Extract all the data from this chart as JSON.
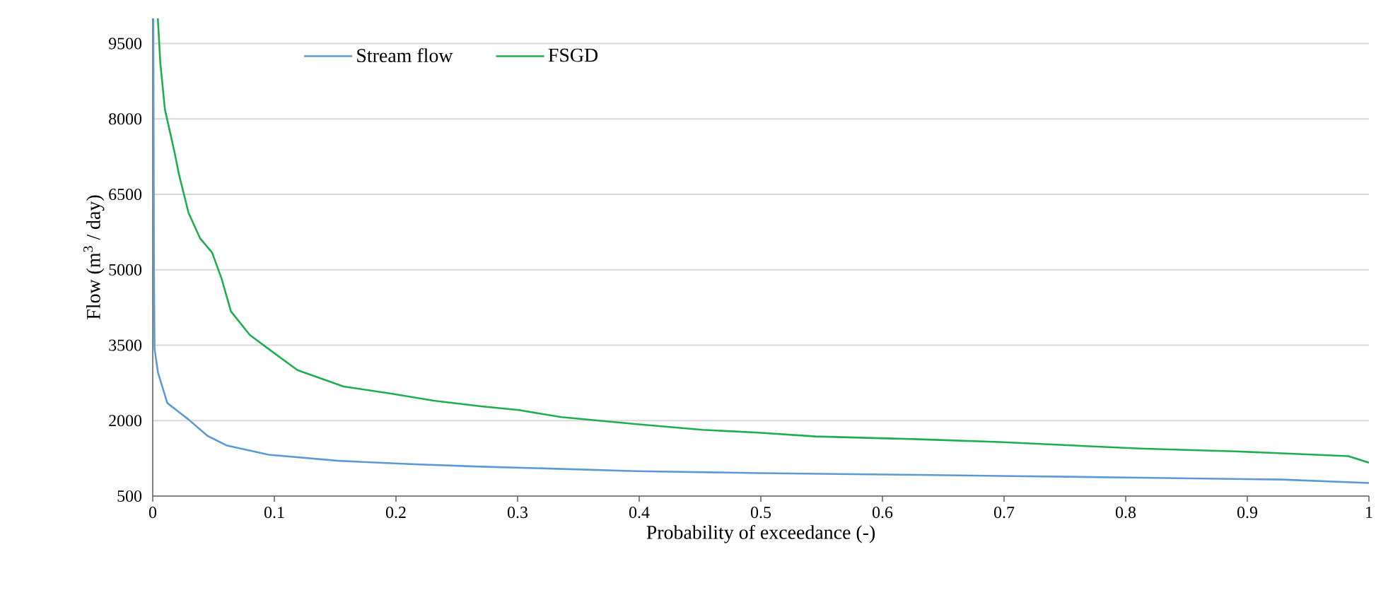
{
  "chart_data": {
    "type": "line",
    "xlabel": "Probability of exceedance (-)",
    "ylabel": "Flow (m$^{3}$ / day)",
    "xlim": [
      0,
      1
    ],
    "ylim": [
      500,
      10000
    ],
    "xticks": [
      0,
      0.1,
      0.2,
      0.3,
      0.4,
      0.5,
      0.6,
      0.7,
      0.8,
      0.9,
      1
    ],
    "yticks": [
      500,
      2000,
      3500,
      5000,
      6500,
      8000,
      9500
    ],
    "grid": "y",
    "legend": "top",
    "marker": "none",
    "line_style": "solid",
    "series": [
      {
        "name": "Stream flow",
        "color": "#5b9bd5",
        "x": [
          0.0005,
          0.001,
          0.0015,
          0.0043,
          0.012,
          0.0294,
          0.045,
          0.0605,
          0.0953,
          0.153,
          0.212,
          0.266,
          0.398,
          0.498,
          0.63,
          0.696,
          0.812,
          0.928,
          1.0
        ],
        "values": [
          10000,
          5000,
          3425,
          2959,
          2350,
          2023,
          1698,
          1509,
          1322,
          1201,
          1136,
          1089,
          996,
          957,
          921,
          901,
          865,
          828,
          761
        ]
      },
      {
        "name": "FSGD",
        "color": "#1fae4f",
        "x": [
          0.0042,
          0.0062,
          0.01,
          0.0178,
          0.0217,
          0.0294,
          0.039,
          0.0488,
          0.0566,
          0.0643,
          0.0798,
          0.0953,
          0.119,
          0.157,
          0.196,
          0.231,
          0.27,
          0.301,
          0.336,
          0.398,
          0.452,
          0.498,
          0.545,
          0.63,
          0.696,
          0.812,
          0.89,
          0.983,
          1.0
        ],
        "values": [
          10000,
          9128,
          8192,
          7350,
          6885,
          6136,
          5623,
          5343,
          4827,
          4173,
          3705,
          3425,
          3004,
          2679,
          2538,
          2398,
          2286,
          2210,
          2070,
          1930,
          1818,
          1762,
          1686,
          1630,
          1574,
          1445,
          1389,
          1294,
          1165
        ]
      }
    ]
  }
}
